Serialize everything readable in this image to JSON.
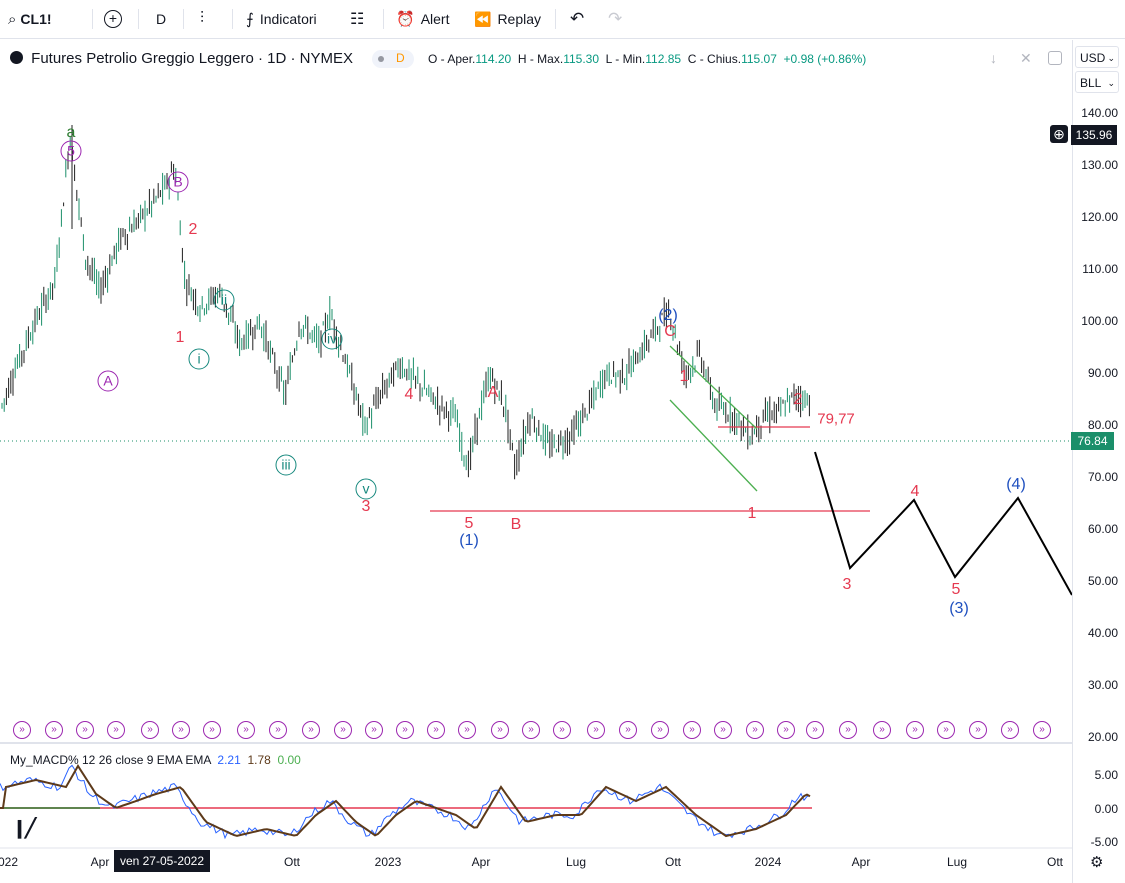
{
  "toolbar": {
    "symbol": "CL1!",
    "interval": "D",
    "indicators_label": "Indicatori",
    "alert_label": "Alert",
    "replay_label": "Replay"
  },
  "legend": {
    "title": "Futures Petrolio Greggio Leggero · 1D · NYMEX",
    "badge": "D",
    "o_label": "O - Aper.",
    "o_val": "114.20",
    "h_label": "H - Max.",
    "h_val": "115.30",
    "l_label": "L - Min.",
    "l_val": "112.85",
    "c_label": "C - Chius.",
    "c_val": "115.07",
    "change": "+0.98 (+0.86%)"
  },
  "axis": {
    "currency": "USD",
    "unit": "BLL",
    "price_ticks": [
      "140.00",
      "130.00",
      "120.00",
      "110.00",
      "100.00",
      "90.00",
      "80.00",
      "70.00",
      "60.00",
      "50.00",
      "40.00",
      "30.00",
      "20.00"
    ],
    "crosshair_price": "135.96",
    "last_price": "76.84",
    "macd_ticks": [
      "5.00",
      "0.00",
      "-5.00"
    ],
    "time_ticks": [
      "022",
      "Apr",
      "Ott",
      "2023",
      "Apr",
      "Lug",
      "Ott",
      "2024",
      "Apr",
      "Lug",
      "Ott"
    ],
    "crosshair_date": "ven 27-05-2022"
  },
  "macd_legend": {
    "name": "My_MACD% 12 26 close 9 EMA EMA",
    "v1": "2.21",
    "v2": "1.78",
    "v3": "0.00"
  },
  "annotations": {
    "a_green": "a",
    "c5": "5",
    "cB": "B",
    "cA": "A",
    "r2a": "2",
    "r1a": "1",
    "ci": "i",
    "cii": "ii",
    "ciii": "iii",
    "civ": "iv",
    "cv": "v",
    "r3a": "3",
    "r4a": "4",
    "rA": "A",
    "r5a": "5",
    "b1": "(1)",
    "rB": "B",
    "b2": "(2)",
    "rC": "C",
    "r1b": "1",
    "r2b": "2",
    "lvl": "79,77",
    "r1c": "1",
    "r3b": "3",
    "r4b": "4",
    "r5b": "5",
    "b3": "(3)",
    "b4": "(4)"
  },
  "colors": {
    "red": "#e53950",
    "blue": "#1e4fbf",
    "teal": "#17897e",
    "purple": "#9c27b0",
    "green": "#2e7d32",
    "candle_up": "#1b8f6a",
    "candle_dn": "#202020"
  },
  "chart_data": {
    "type": "candlestick",
    "series": [
      {
        "name": "close",
        "x": [
          "2022-01",
          "2022-02",
          "2022-03",
          "2022-04",
          "2022-05",
          "2022-06",
          "2022-07",
          "2022-08",
          "2022-09",
          "2022-10",
          "2022-11",
          "2022-12",
          "2023-01",
          "2023-02",
          "2023-03",
          "2023-04",
          "2023-05",
          "2023-06",
          "2023-07",
          "2023-08",
          "2023-09",
          "2023-10",
          "2023-11",
          "2023-12",
          "2024-01",
          "2024-02"
        ],
        "y": [
          80,
          92,
          110,
          102,
          112,
          118,
          98,
          92,
          84,
          88,
          82,
          74,
          78,
          77,
          70,
          80,
          72,
          70,
          78,
          82,
          92,
          84,
          76,
          72,
          74,
          77
        ]
      },
      {
        "name": "projection",
        "x": [
          "2024-02",
          "2024-03",
          "2024-05",
          "2024-07",
          "2024-09",
          "2024-11"
        ],
        "y": [
          76,
          52,
          65,
          50,
          65,
          48
        ]
      }
    ],
    "ylim": [
      20,
      145
    ]
  }
}
